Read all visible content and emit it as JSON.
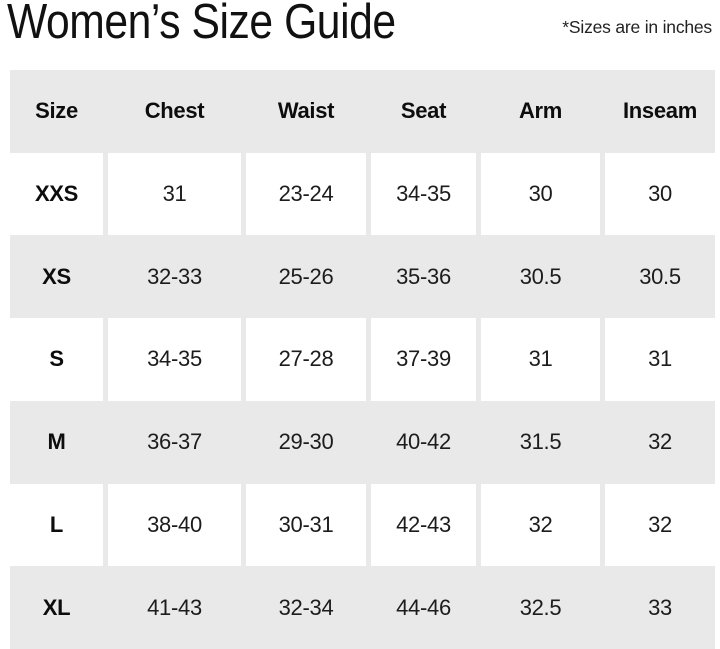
{
  "page": {
    "title": "Women’s Size Guide",
    "note": "*Sizes are in inches"
  },
  "table": {
    "columns": [
      "Size",
      "Chest",
      "Waist",
      "Seat",
      "Arm",
      "Inseam"
    ],
    "rows": [
      {
        "size": "XXS",
        "values": [
          "31",
          "23-24",
          "34-35",
          "30",
          "30"
        ]
      },
      {
        "size": "XS",
        "values": [
          "32-33",
          "25-26",
          "35-36",
          "30.5",
          "30.5"
        ]
      },
      {
        "size": "S",
        "values": [
          "34-35",
          "27-28",
          "37-39",
          "31",
          "31"
        ]
      },
      {
        "size": "M",
        "values": [
          "36-37",
          "29-30",
          "40-42",
          "31.5",
          "32"
        ]
      },
      {
        "size": "L",
        "values": [
          "38-40",
          "30-31",
          "42-43",
          "32",
          "32"
        ]
      },
      {
        "size": "XL",
        "values": [
          "41-43",
          "32-34",
          "44-46",
          "32.5",
          "33"
        ]
      }
    ],
    "colors": {
      "row_shade": "#e9e9e9",
      "cell_background": "#ffffff",
      "text": "#1c1c1c",
      "title_text": "#111111"
    }
  }
}
